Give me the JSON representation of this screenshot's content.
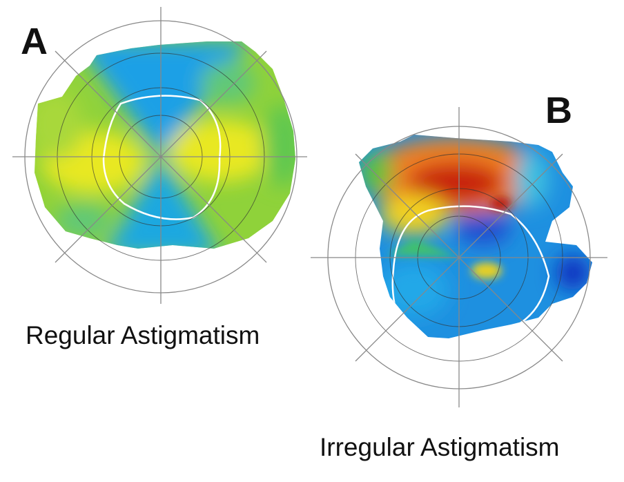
{
  "panels": [
    {
      "label": "A",
      "caption": "Regular Astigmatism"
    },
    {
      "label": "B",
      "caption": "Irregular Astigmatism"
    }
  ]
}
